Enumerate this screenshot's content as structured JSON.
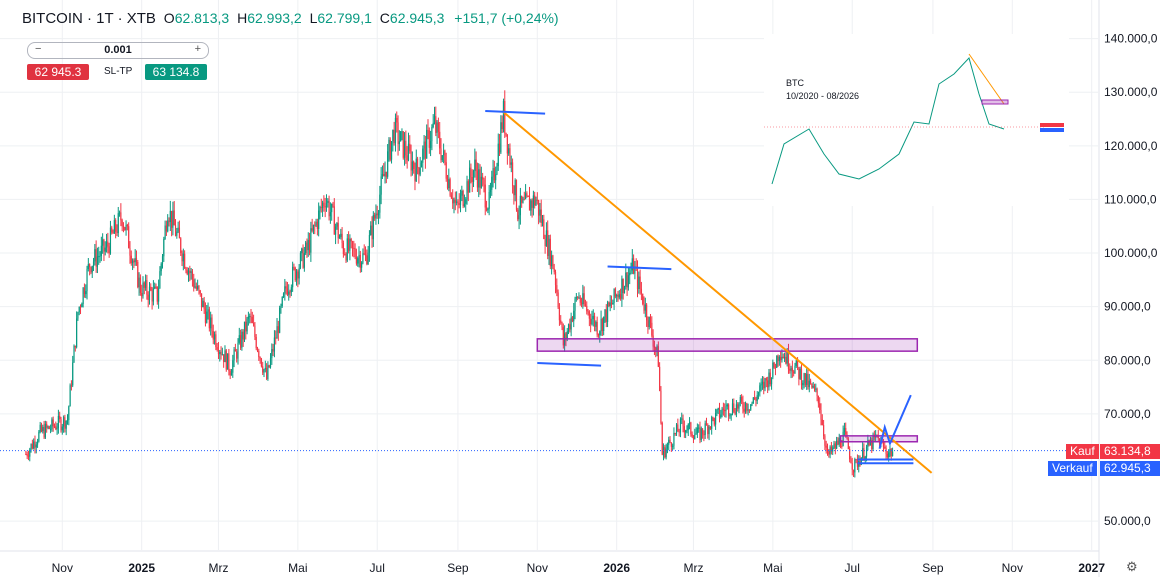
{
  "header": {
    "symbol": "BITCOIN · 1T · XTB",
    "open_label": "O",
    "open": "62.813,3",
    "high_label": "H",
    "high": "62.993,2",
    "low_label": "L",
    "low": "62.799,1",
    "close_label": "C",
    "close": "62.945,3",
    "change": "+151,7 (+0,24%)"
  },
  "trade_panel": {
    "quantity": "0.001",
    "minus": "−",
    "plus": "+",
    "sell_price": "62 945.3",
    "sltp_label": "SL-TP",
    "buy_price": "63 134.8"
  },
  "price_badges": {
    "kauf_label": "Kauf",
    "kauf_value": "63.134,8",
    "verkauf_label": "Verkauf",
    "verkauf_value": "62.945,3"
  },
  "colors": {
    "up": "#089981",
    "down": "#f23645",
    "trend": "#ff9800",
    "level": "#2962ff",
    "zone": "#9c27b0",
    "kauf": "#f23645",
    "verkauf": "#2962ff"
  },
  "icons": {
    "settings": "gear-icon"
  },
  "chart_data": {
    "type": "candlestick",
    "title": "BITCOIN · 1T · XTB",
    "yticks": [
      "140.000,0",
      "130.000,0",
      "120.000,0",
      "110.000,0",
      "100.000,0",
      "90.000,0",
      "80.000,0",
      "70.000,0",
      "50.000,0"
    ],
    "ytick_values": [
      140000,
      130000,
      120000,
      110000,
      100000,
      90000,
      80000,
      70000,
      50000
    ],
    "xticks": [
      "Nov",
      "2025",
      "Mrz",
      "Mai",
      "Jul",
      "Sep",
      "Nov",
      "2026",
      "Mrz",
      "Mai",
      "Jul",
      "Sep",
      "Nov",
      "2027"
    ],
    "xtick_bold": [
      false,
      true,
      false,
      false,
      false,
      false,
      false,
      true,
      false,
      false,
      false,
      false,
      false,
      true
    ],
    "x_range": [
      "2024-10-04",
      "2027-01-01"
    ],
    "ylim": [
      46000,
      143000
    ],
    "log_scale": false,
    "grid": true,
    "current_bid": 62945.3,
    "current_ask": 63134.8,
    "price_path": [
      [
        "2024-10-04",
        62500
      ],
      [
        "2024-10-15",
        66500
      ],
      [
        "2024-11-05",
        69000
      ],
      [
        "2024-11-13",
        89000
      ],
      [
        "2024-11-22",
        98000
      ],
      [
        "2024-12-05",
        101000
      ],
      [
        "2024-12-17",
        107000
      ],
      [
        "2024-12-31",
        93500
      ],
      [
        "2025-01-13",
        92000
      ],
      [
        "2025-01-21",
        108500
      ],
      [
        "2025-02-03",
        99000
      ],
      [
        "2025-02-26",
        84500
      ],
      [
        "2025-03-10",
        78500
      ],
      [
        "2025-03-25",
        88000
      ],
      [
        "2025-04-07",
        76500
      ],
      [
        "2025-04-22",
        93500
      ],
      [
        "2025-05-08",
        100500
      ],
      [
        "2025-05-22",
        110500
      ],
      [
        "2025-06-05",
        101000
      ],
      [
        "2025-06-22",
        99000
      ],
      [
        "2025-07-14",
        123000
      ],
      [
        "2025-07-31",
        115500
      ],
      [
        "2025-08-14",
        124000
      ],
      [
        "2025-08-31",
        108000
      ],
      [
        "2025-09-14",
        116000
      ],
      [
        "2025-09-25",
        109000
      ],
      [
        "2025-10-06",
        126000
      ],
      [
        "2025-10-17",
        108000
      ],
      [
        "2025-10-31",
        110000
      ],
      [
        "2025-11-14",
        97000
      ],
      [
        "2025-11-21",
        83000
      ],
      [
        "2025-12-02",
        92000
      ],
      [
        "2025-12-18",
        86000
      ],
      [
        "2026-01-05",
        94000
      ],
      [
        "2026-01-14",
        97500
      ],
      [
        "2026-01-25",
        88000
      ],
      [
        "2026-02-02",
        80000
      ],
      [
        "2026-02-05",
        62500
      ],
      [
        "2026-02-20",
        68000
      ],
      [
        "2026-03-05",
        66000
      ],
      [
        "2026-03-25",
        71000
      ],
      [
        "2026-04-15",
        72000
      ],
      [
        "2026-05-01",
        78000
      ],
      [
        "2026-05-06",
        82000
      ],
      [
        "2026-05-20",
        78000
      ],
      [
        "2026-06-05",
        73000
      ],
      [
        "2026-06-12",
        62000
      ],
      [
        "2026-06-25",
        66000
      ],
      [
        "2026-07-02",
        60000
      ],
      [
        "2026-07-12",
        63500
      ],
      [
        "2026-07-20",
        65500
      ],
      [
        "2026-07-27",
        63000
      ],
      [
        "2026-08-01",
        62945
      ]
    ],
    "drawings": {
      "trendline": {
        "from": [
          "2025-10-05",
          126500
        ],
        "to": [
          "2026-08-31",
          59000
        ]
      },
      "blue_levels": [
        {
          "from": [
            "2025-09-22",
            126500
          ],
          "to": [
            "2025-11-07",
            126000
          ]
        },
        {
          "from": [
            "2025-12-25",
            97500
          ],
          "to": [
            "2026-02-12",
            97000
          ]
        },
        {
          "from": [
            "2025-11-01",
            79500
          ],
          "to": [
            "2025-12-20",
            79000
          ]
        },
        {
          "from": [
            "2026-07-05",
            61500
          ],
          "to": [
            "2026-08-17",
            61500
          ]
        },
        {
          "from": [
            "2026-07-05",
            60800
          ],
          "to": [
            "2026-08-17",
            60800
          ]
        }
      ],
      "zones": [
        {
          "from": "2025-11-01",
          "to": "2026-08-20",
          "low": 81700,
          "high": 84000
        },
        {
          "from": "2026-06-22",
          "to": "2026-08-20",
          "low": 64800,
          "high": 65900
        }
      ],
      "pattern_line": [
        [
          "2026-07-22",
          63500
        ],
        [
          "2026-07-26",
          67500
        ],
        [
          "2026-07-30",
          64500
        ],
        [
          "2026-08-15",
          73500
        ]
      ]
    },
    "inset": {
      "label": "BTC",
      "range_label": "10/2020 - 08/2026"
    }
  }
}
